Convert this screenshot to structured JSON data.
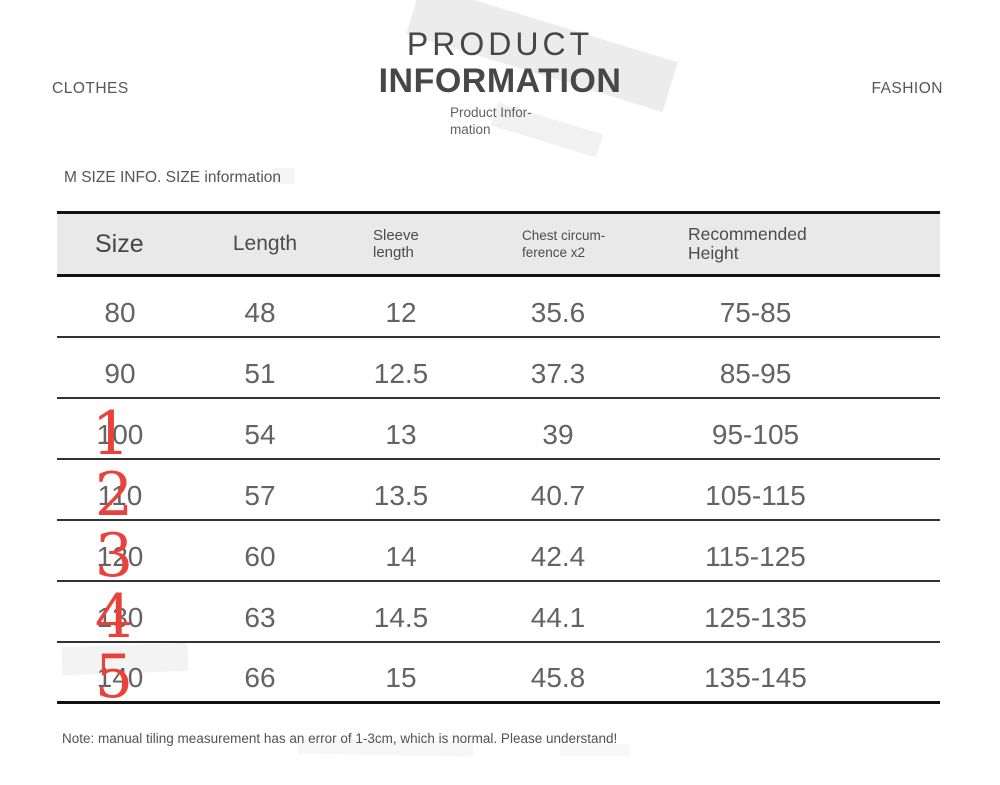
{
  "accent_color": "#e9423c",
  "header": {
    "left_label": "CLOTHES",
    "right_label": "FASHION",
    "title_line1": "PRODUCT",
    "title_line2": "INFORMATION",
    "subtitle": "Product Infor-\nmation"
  },
  "section": {
    "label": "M SIZE INFO. SIZE information"
  },
  "table": {
    "columns": [
      "Size",
      "Length",
      "Sleeve\nlength",
      "Chest circum-\nference x2",
      "Recommended\nHeight"
    ],
    "rows": [
      {
        "size": "80",
        "length": "48",
        "sleeve": "12",
        "chest": "35.6",
        "height": "75-85",
        "marker": ""
      },
      {
        "size": "90",
        "length": "51",
        "sleeve": "12.5",
        "chest": "37.3",
        "height": "85-95",
        "marker": ""
      },
      {
        "size": "100",
        "length": "54",
        "sleeve": "13",
        "chest": "39",
        "height": "95-105",
        "marker": "1"
      },
      {
        "size": "110",
        "length": "57",
        "sleeve": "13.5",
        "chest": "40.7",
        "height": "105-115",
        "marker": "2"
      },
      {
        "size": "120",
        "length": "60",
        "sleeve": "14",
        "chest": "42.4",
        "height": "115-125",
        "marker": "3"
      },
      {
        "size": "130",
        "length": "63",
        "sleeve": "14.5",
        "chest": "44.1",
        "height": "125-135",
        "marker": "4"
      },
      {
        "size": "140",
        "length": "66",
        "sleeve": "15",
        "chest": "45.8",
        "height": "135-145",
        "marker": "5"
      }
    ]
  },
  "note": {
    "text": "Note: manual tiling measurement has an error of 1-3cm, which is normal. Please understand!"
  }
}
